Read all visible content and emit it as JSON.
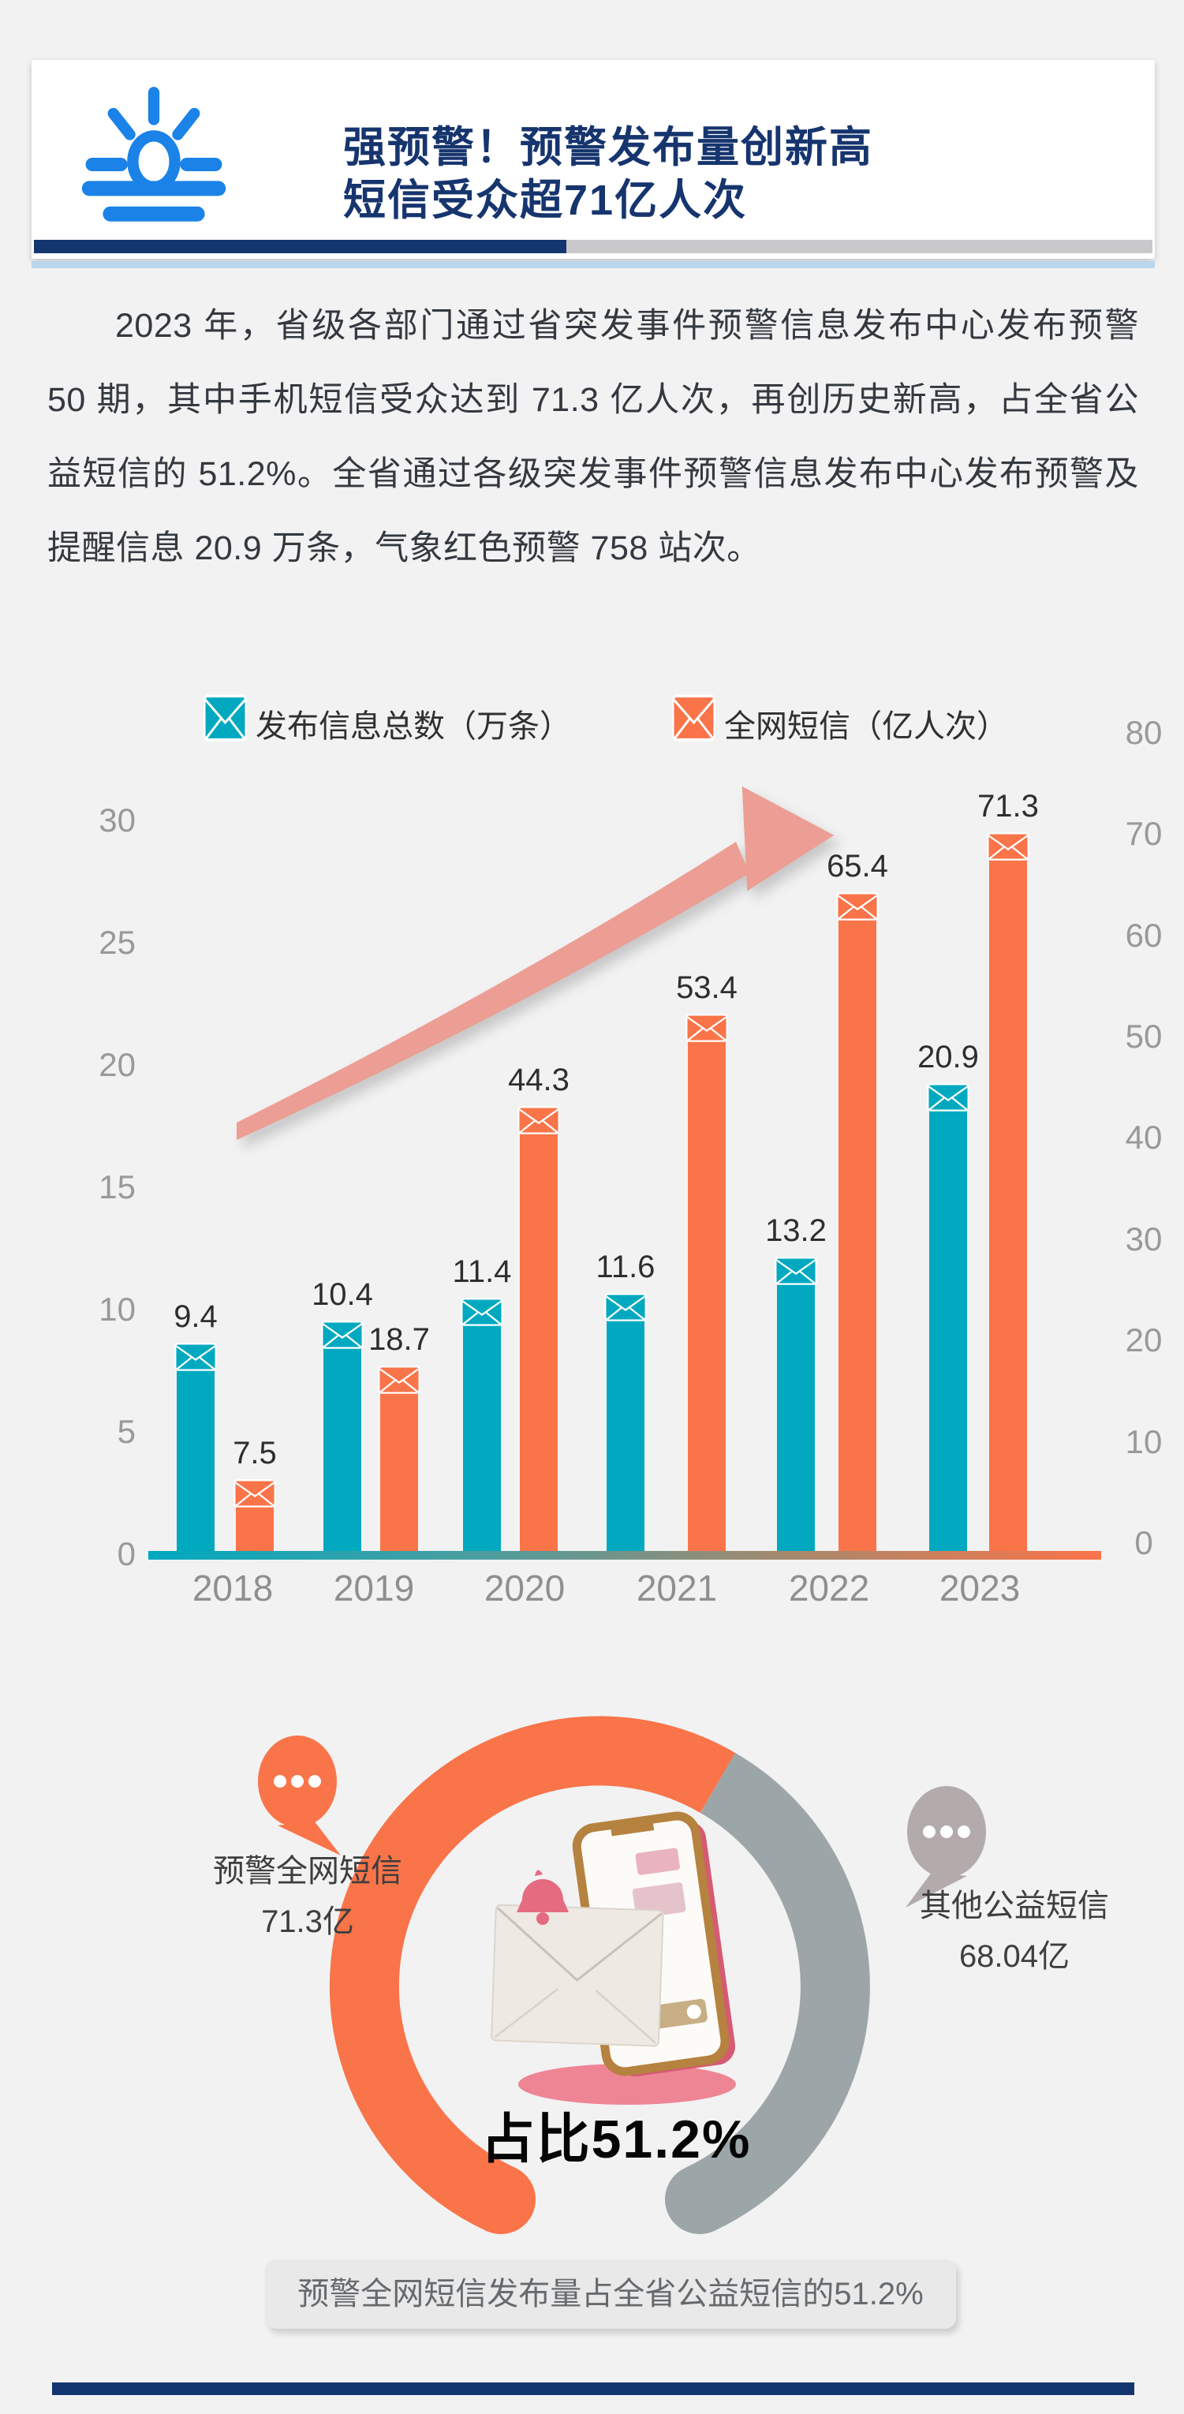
{
  "page": {
    "background": "#f2f2f3"
  },
  "header": {
    "title_line1": "强预警！预警发布量创新高",
    "title_line2": "短信受众超71亿人次",
    "icon": "sunrise-icon",
    "icon_color": "#1b82e8",
    "accent_navy": "#14366f",
    "accent_silver": "#c9c9cb",
    "accent_lightblue": "#bad6ec"
  },
  "paragraph": {
    "text": "2023 年，省级各部门通过省突发事件预警信息发布中心发布预警 50 期，其中手机短信受众达到 71.3 亿人次，再创历史新高，占全省公益短信的 51.2%。全省通过各级突发事件预警信息发布中心发布预警及提醒信息 20.9 万条，气象红色预警 758 站次。"
  },
  "chart_data": {
    "type": "bar",
    "categories": [
      "2018",
      "2019",
      "2020",
      "2021",
      "2022",
      "2023"
    ],
    "series": [
      {
        "name": "发布信息总数（万条）",
        "color": "#00a9c0",
        "axis": "left",
        "values": [
          9.4,
          10.4,
          11.4,
          11.6,
          13.2,
          20.9
        ]
      },
      {
        "name": "全网短信（亿人次）",
        "color": "#fa7449",
        "axis": "right",
        "values": [
          7.5,
          18.7,
          44.3,
          53.4,
          65.4,
          71.3
        ]
      }
    ],
    "left_axis": {
      "ticks": [
        0,
        5,
        10,
        15,
        20,
        25,
        30
      ],
      "max": 30
    },
    "right_axis": {
      "ticks": [
        0,
        10,
        20,
        30,
        40,
        50,
        60,
        70,
        80
      ],
      "max": 80
    },
    "grid": false,
    "legend_position": "top",
    "bar_icon": "envelope-icon",
    "trend_arrow": {
      "name": "growth-arrow-icon",
      "color": "#ec9e94"
    }
  },
  "donut": {
    "orange_color": "#fa7449",
    "gray_color": "#9ca6a8",
    "orange_bubble_icon": "speech-bubble-dots-icon",
    "gray_bubble_icon": "speech-bubble-dots-icon",
    "orange_bubble_color": "#fa7449",
    "gray_bubble_color": "#b3abab",
    "orange_label_line1": "预警全网短信",
    "orange_label_line2": "71.3亿",
    "gray_label_line1": "其他公益短信",
    "gray_label_line2": "68.04亿",
    "center_illustration": "phone-alert-illustration",
    "center_label": "占比51.2%"
  },
  "caption": {
    "text": "预警全网短信发布量占全省公益短信的51.2%"
  }
}
